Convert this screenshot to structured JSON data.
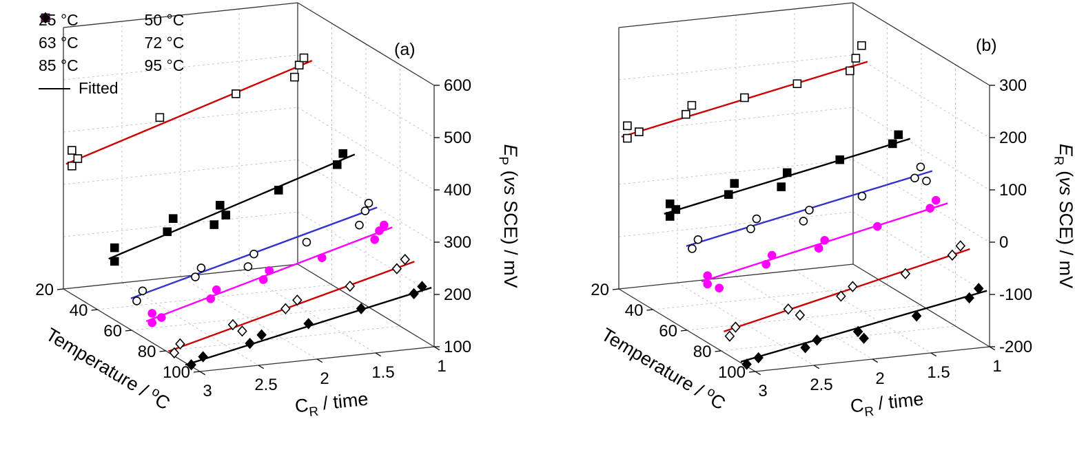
{
  "panel_tags": [
    "(a)",
    "(b)"
  ],
  "legend": {
    "entries": [
      {
        "marker": "open-square",
        "label": "25 °C",
        "color": "#000000"
      },
      {
        "marker": "filled-square",
        "label": "50 °C",
        "color": "#000000"
      },
      {
        "marker": "open-circle",
        "label": "63 °C",
        "color": "#000000"
      },
      {
        "marker": "filled-circle",
        "label": "72 °C",
        "color": "#ff00ff"
      },
      {
        "marker": "open-diamond",
        "label": "85 °C",
        "color": "#000000"
      },
      {
        "marker": "filled-diamond",
        "label": "95 °C",
        "color": "#000000"
      },
      {
        "marker": "line",
        "label": "Fitted",
        "color": "#000000"
      }
    ]
  },
  "chart_data": [
    {
      "id": "a",
      "tag": "(a)",
      "type": "scatter",
      "projection": "3d",
      "x_axis": {
        "label": "C_R / time",
        "label_parts": [
          {
            "t": "C"
          },
          {
            "t": "R",
            "sub": true
          },
          {
            "t": " / time"
          }
        ],
        "ticks": [
          3,
          2.5,
          2,
          1.5,
          1
        ],
        "range": [
          3,
          1
        ]
      },
      "y_axis": {
        "label": "Temperature / °C",
        "label_parts": [
          {
            "t": "Temperature / "
          },
          {
            "t": "o",
            "sup": true
          },
          {
            "t": "C"
          }
        ],
        "ticks": [
          20,
          40,
          60,
          80,
          100
        ],
        "range": [
          20,
          100
        ]
      },
      "z_axis": {
        "label": "E_P (vs SCE) / mV",
        "label_parts": [
          {
            "t": "E",
            "i": true
          },
          {
            "t": "P",
            "sub": true
          },
          {
            "t": " ("
          },
          {
            "t": "vs",
            "i": true
          },
          {
            "t": " SCE) / mV"
          }
        ],
        "ticks": [
          100,
          200,
          300,
          400,
          500,
          600
        ],
        "range": [
          100,
          600
        ]
      },
      "grid": true,
      "legend_position": "top-left",
      "series": [
        {
          "name": "25 °C",
          "temperature": 25,
          "marker": "open-square",
          "marker_color": "#000000",
          "line_color": "#cc0000",
          "points": [
            [
              3.0,
              345
            ],
            [
              3.0,
              375
            ],
            [
              2.95,
              358
            ],
            [
              2.25,
              420
            ],
            [
              1.6,
              450
            ],
            [
              1.1,
              470
            ],
            [
              1.06,
              492
            ],
            [
              1.02,
              505
            ]
          ],
          "fit": {
            "x": [
              3.05,
              0.95
            ],
            "z": [
              350,
              498
            ]
          }
        },
        {
          "name": "50 °C",
          "temperature": 50,
          "marker": "filled-square",
          "marker_color": "#000000",
          "line_color": "#000000",
          "points": [
            [
              3.0,
              212
            ],
            [
              3.0,
              238
            ],
            [
              2.55,
              258
            ],
            [
              2.5,
              282
            ],
            [
              2.15,
              262
            ],
            [
              2.1,
              298
            ],
            [
              2.05,
              278
            ],
            [
              1.6,
              315
            ],
            [
              1.1,
              352
            ],
            [
              1.05,
              372
            ]
          ],
          "fit": {
            "x": [
              3.05,
              0.95
            ],
            "z": [
              218,
              368
            ]
          }
        },
        {
          "name": "63 °C",
          "temperature": 63,
          "marker": "open-circle",
          "marker_color": "#000000",
          "line_color": "#3333cc",
          "points": [
            [
              3.0,
              162
            ],
            [
              2.95,
              180
            ],
            [
              2.5,
              196
            ],
            [
              2.45,
              212
            ],
            [
              2.05,
              205
            ],
            [
              2.0,
              228
            ],
            [
              1.55,
              240
            ],
            [
              1.1,
              262
            ],
            [
              1.05,
              288
            ],
            [
              1.02,
              302
            ]
          ],
          "fit": {
            "x": [
              3.05,
              0.95
            ],
            "z": [
              168,
              292
            ]
          }
        },
        {
          "name": "72 °C",
          "temperature": 72,
          "marker": "filled-circle",
          "marker_color": "#ff00ff",
          "line_color": "#ff00ff",
          "points": [
            [
              3.0,
              138
            ],
            [
              3.0,
              156
            ],
            [
              2.92,
              146
            ],
            [
              2.5,
              172
            ],
            [
              2.45,
              188
            ],
            [
              2.05,
              198
            ],
            [
              2.0,
              214
            ],
            [
              1.55,
              228
            ],
            [
              1.1,
              252
            ],
            [
              1.06,
              268
            ],
            [
              1.02,
              278
            ]
          ],
          "fit": {
            "x": [
              3.05,
              0.95
            ],
            "z": [
              142,
              272
            ]
          }
        },
        {
          "name": "85 °C",
          "temperature": 85,
          "marker": "open-diamond",
          "marker_color": "#000000",
          "line_color": "#cc0000",
          "points": [
            [
              3.0,
              106
            ],
            [
              2.95,
              122
            ],
            [
              2.5,
              148
            ],
            [
              2.42,
              134
            ],
            [
              2.05,
              168
            ],
            [
              1.95,
              182
            ],
            [
              1.5,
              198
            ],
            [
              1.1,
              222
            ],
            [
              1.03,
              238
            ]
          ],
          "fit": {
            "x": [
              3.05,
              0.95
            ],
            "z": [
              110,
              232
            ]
          }
        },
        {
          "name": "95 °C",
          "temperature": 95,
          "marker": "filled-diamond",
          "marker_color": "#000000",
          "line_color": "#000000",
          "points": [
            [
              3.0,
              103
            ],
            [
              2.9,
              116
            ],
            [
              2.5,
              132
            ],
            [
              2.4,
              146
            ],
            [
              2.0,
              158
            ],
            [
              1.55,
              176
            ],
            [
              1.1,
              194
            ],
            [
              1.03,
              206
            ]
          ],
          "fit": {
            "x": [
              3.05,
              0.95
            ],
            "z": [
              104,
              202
            ]
          }
        }
      ]
    },
    {
      "id": "b",
      "tag": "(b)",
      "type": "scatter",
      "projection": "3d",
      "x_axis": {
        "label": "C_R / time",
        "label_parts": [
          {
            "t": "C"
          },
          {
            "t": "R",
            "sub": true
          },
          {
            "t": " / time"
          }
        ],
        "ticks": [
          3,
          2.5,
          2,
          1.5,
          1
        ],
        "range": [
          3,
          1
        ]
      },
      "y_axis": {
        "label": "Temperature / °C",
        "label_parts": [
          {
            "t": "Temperature / "
          },
          {
            "t": "o",
            "sup": true
          },
          {
            "t": "C"
          }
        ],
        "ticks": [
          20,
          40,
          60,
          80,
          100
        ],
        "range": [
          20,
          100
        ]
      },
      "z_axis": {
        "label": "E_R (vs SCE) / mV",
        "label_parts": [
          {
            "t": "E",
            "i": true
          },
          {
            "t": "R",
            "sub": true
          },
          {
            "t": " ("
          },
          {
            "t": "vs",
            "i": true
          },
          {
            "t": " SCE) / mV"
          }
        ],
        "ticks": [
          -200,
          -100,
          0,
          100,
          200,
          300
        ],
        "range": [
          -200,
          300
        ]
      },
      "grid": true,
      "legend_position": "none",
      "series": [
        {
          "name": "25 °C",
          "temperature": 25,
          "marker": "open-square",
          "marker_color": "#000000",
          "line_color": "#cc0000",
          "points": [
            [
              3.0,
              98
            ],
            [
              3.0,
              122
            ],
            [
              2.9,
              108
            ],
            [
              2.5,
              132
            ],
            [
              2.45,
              148
            ],
            [
              2.0,
              152
            ],
            [
              1.55,
              168
            ],
            [
              1.1,
              182
            ],
            [
              1.05,
              205
            ],
            [
              1.0,
              228
            ]
          ],
          "fit": {
            "x": [
              3.05,
              0.95
            ],
            "z": [
              102,
              196
            ]
          }
        },
        {
          "name": "50 °C",
          "temperature": 50,
          "marker": "filled-square",
          "marker_color": "#000000",
          "line_color": "#000000",
          "points": [
            [
              3.0,
              -2
            ],
            [
              3.0,
              22
            ],
            [
              2.95,
              10
            ],
            [
              2.5,
              28
            ],
            [
              2.45,
              48
            ],
            [
              2.05,
              32
            ],
            [
              2.0,
              58
            ],
            [
              1.55,
              72
            ],
            [
              1.1,
              92
            ],
            [
              1.05,
              108
            ]
          ],
          "fit": {
            "x": [
              3.05,
              0.95
            ],
            "z": [
              4,
              98
            ]
          }
        },
        {
          "name": "63 °C",
          "temperature": 63,
          "marker": "open-circle",
          "marker_color": "#000000",
          "line_color": "#3333cc",
          "points": [
            [
              3.0,
              -38
            ],
            [
              2.95,
              -22
            ],
            [
              2.5,
              -12
            ],
            [
              2.45,
              6
            ],
            [
              2.05,
              -8
            ],
            [
              2.0,
              12
            ],
            [
              1.55,
              28
            ],
            [
              1.1,
              52
            ],
            [
              1.05,
              72
            ],
            [
              1.0,
              44
            ]
          ],
          "fit": {
            "x": [
              3.05,
              0.95
            ],
            "z": [
              -32,
              62
            ]
          }
        },
        {
          "name": "72 °C",
          "temperature": 72,
          "marker": "filled-circle",
          "marker_color": "#ff00ff",
          "line_color": "#ff00ff",
          "points": [
            [
              3.0,
              -88
            ],
            [
              3.0,
              -72
            ],
            [
              2.9,
              -98
            ],
            [
              2.5,
              -62
            ],
            [
              2.45,
              -46
            ],
            [
              2.05,
              -42
            ],
            [
              2.0,
              -28
            ],
            [
              1.55,
              -12
            ],
            [
              1.1,
              12
            ],
            [
              1.05,
              26
            ]
          ],
          "fit": {
            "x": [
              3.05,
              0.95
            ],
            "z": [
              -82,
              18
            ]
          }
        },
        {
          "name": "85 °C",
          "temperature": 85,
          "marker": "open-diamond",
          "marker_color": "#000000",
          "line_color": "#cc0000",
          "points": [
            [
              3.0,
              -162
            ],
            [
              2.95,
              -146
            ],
            [
              2.5,
              -122
            ],
            [
              2.4,
              -136
            ],
            [
              2.05,
              -108
            ],
            [
              1.95,
              -92
            ],
            [
              1.5,
              -78
            ],
            [
              1.1,
              -52
            ],
            [
              1.03,
              -36
            ]
          ],
          "fit": {
            "x": [
              3.05,
              0.95
            ],
            "z": [
              -152,
              -44
            ]
          }
        },
        {
          "name": "95 °C",
          "temperature": 95,
          "marker": "filled-diamond",
          "marker_color": "#000000",
          "line_color": "#000000",
          "points": [
            [
              3.0,
              -196
            ],
            [
              2.9,
              -186
            ],
            [
              2.5,
              -176
            ],
            [
              2.4,
              -164
            ],
            [
              2.05,
              -156
            ],
            [
              2.0,
              -170
            ],
            [
              1.55,
              -138
            ],
            [
              1.1,
              -114
            ],
            [
              1.02,
              -98
            ]
          ],
          "fit": {
            "x": [
              3.05,
              0.95
            ],
            "z": [
              -190,
              -104
            ]
          }
        }
      ]
    }
  ]
}
